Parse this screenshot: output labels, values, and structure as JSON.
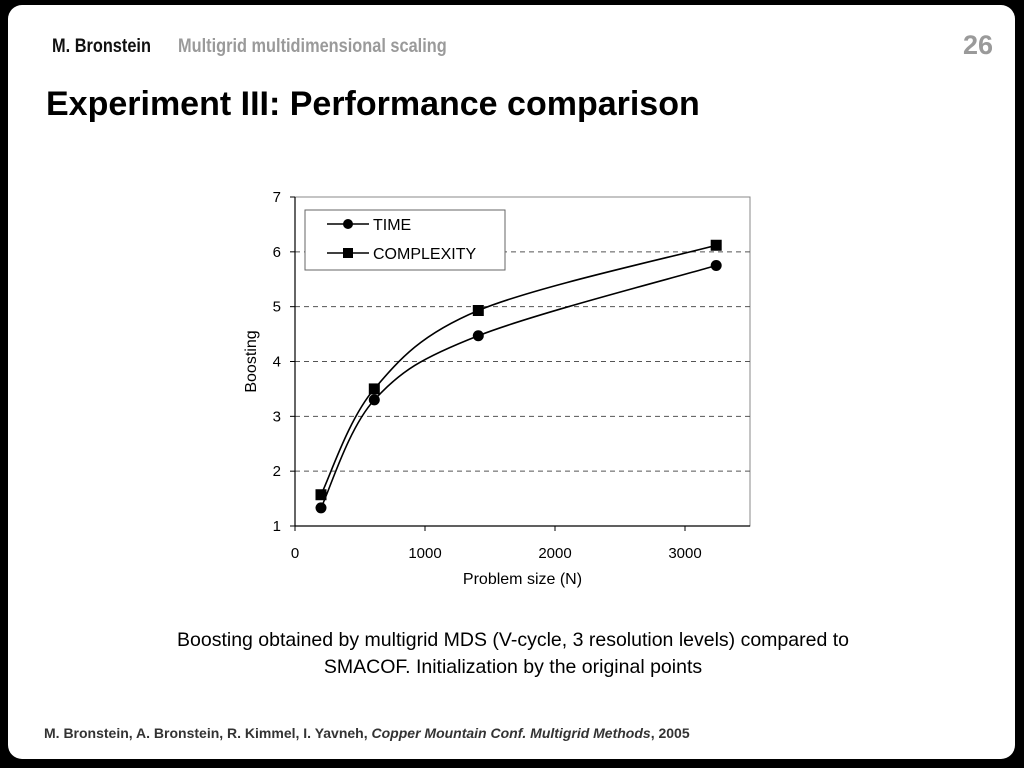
{
  "header": {
    "author": "M. Bronstein",
    "topic": "Multigrid multidimensional scaling",
    "slide_number": "26"
  },
  "title": "Experiment III: Performance comparison",
  "chart_data": {
    "type": "line",
    "xlabel": "Problem size (N)",
    "ylabel": "Boosting",
    "xlim": [
      0,
      3500
    ],
    "ylim": [
      1,
      7
    ],
    "xticks": [
      0,
      1000,
      2000,
      3000
    ],
    "yticks": [
      1,
      2,
      3,
      4,
      5,
      6,
      7
    ],
    "grid": "horizontal dashed",
    "legend_position": "top-left",
    "series": [
      {
        "name": "TIME",
        "marker": "circle",
        "x": [
          200,
          610,
          1410,
          3240
        ],
        "y": [
          1.33,
          3.3,
          4.47,
          5.75
        ]
      },
      {
        "name": "COMPLEXITY",
        "marker": "square",
        "x": [
          200,
          610,
          1410,
          3240
        ],
        "y": [
          1.57,
          3.5,
          4.93,
          6.12
        ]
      }
    ]
  },
  "caption": {
    "line1": "Boosting obtained by multigrid MDS (V-cycle, 3 resolution levels) compared to",
    "line2": "SMACOF. Initialization by the original points"
  },
  "footer": {
    "authors": "M. Bronstein, A. Bronstein, R. Kimmel, I. Yavneh,",
    "venue": "Copper Mountain Conf. Multigrid Methods",
    "year": ", 2005"
  }
}
